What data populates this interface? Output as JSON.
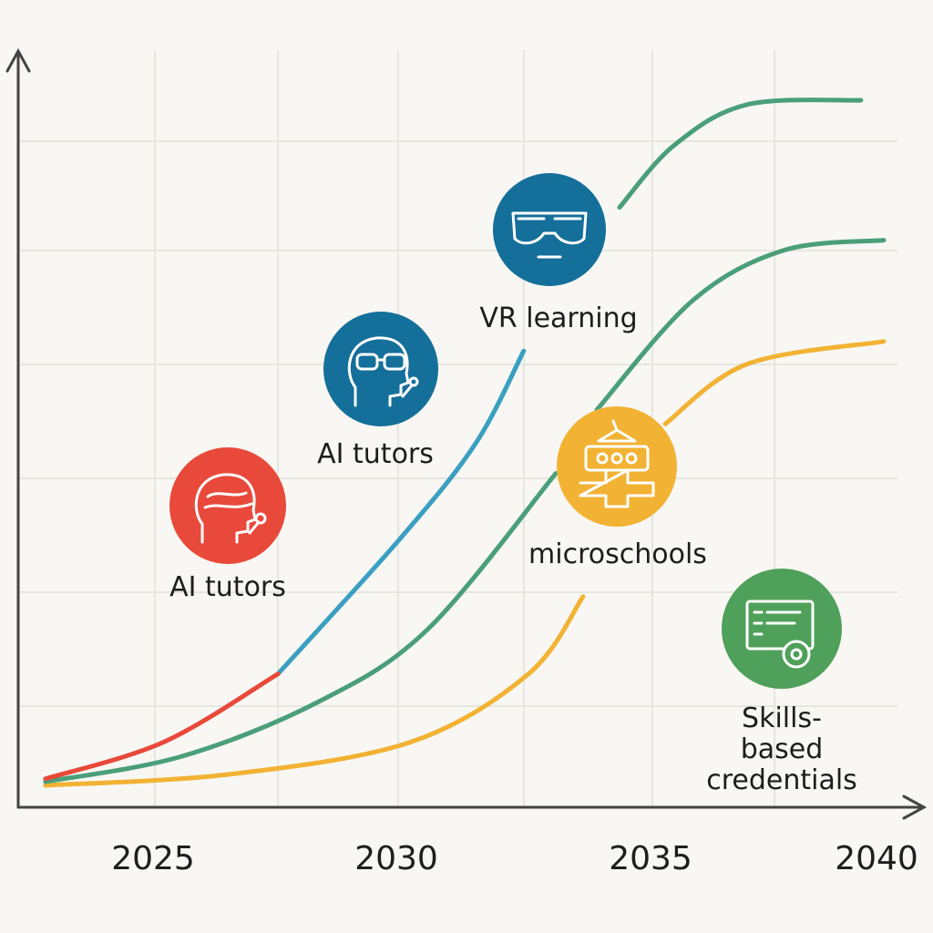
{
  "chart_data": {
    "type": "line",
    "title": "",
    "xlabel": "",
    "ylabel": "",
    "xlim": [
      2022.5,
      2041
    ],
    "ylim": [
      0,
      100
    ],
    "grid": true,
    "x_ticks": [
      "2025",
      "2030",
      "2035",
      "2040"
    ],
    "series": [
      {
        "name": "AI tutors (red)",
        "color": "#e8493a",
        "points": [
          [
            2022.75,
            3.9
          ],
          [
            2025.2,
            9
          ],
          [
            2027.53,
            18.3
          ]
        ]
      },
      {
        "name": "AI tutors (blue)",
        "color": "#3a9fc0",
        "points": [
          [
            2027.53,
            18.3
          ],
          [
            2030.06,
            37
          ],
          [
            2031.6,
            50
          ],
          [
            2032.58,
            62.6
          ]
        ]
      },
      {
        "name": "microschools (green)",
        "color": "#4a9f7a",
        "points": [
          [
            2022.75,
            3.5
          ],
          [
            2025.56,
            7
          ],
          [
            2028.37,
            14.5
          ],
          [
            2030.62,
            24.5
          ],
          [
            2033.24,
            45.8
          ]
        ]
      },
      {
        "name": "microschools (green upper)",
        "color": "#4a9f7a",
        "points": [
          [
            2034.08,
            54.5
          ],
          [
            2036.05,
            69.5
          ],
          [
            2037.92,
            76.4
          ],
          [
            2039.98,
            77.8
          ]
        ]
      },
      {
        "name": "VR learning (green top)",
        "color": "#4a9f7a",
        "points": [
          [
            2034.55,
            82.3
          ],
          [
            2035.67,
            90.8
          ],
          [
            2037.17,
            96.4
          ],
          [
            2039.51,
            97
          ]
        ]
      },
      {
        "name": "Skills-based credentials (yellow)",
        "color": "#f2b233",
        "points": [
          [
            2022.75,
            3
          ],
          [
            2026.5,
            4.5
          ],
          [
            2030.24,
            8.9
          ],
          [
            2032.68,
            18.3
          ],
          [
            2033.8,
            28.9
          ]
        ]
      },
      {
        "name": "Skills-based credentials (yellow upper)",
        "color": "#f2b233",
        "points": [
          [
            2035.49,
            52.6
          ],
          [
            2037.17,
            60.8
          ],
          [
            2039.98,
            63.9
          ]
        ]
      }
    ],
    "annotations": [
      {
        "text": "AI tutors",
        "icon": "head-with-headset-icon",
        "color": "#e8493a"
      },
      {
        "text": "AI tutors",
        "icon": "head-with-glasses-icon",
        "color": "#146f9a"
      },
      {
        "text": "VR learning",
        "icon": "vr-goggles-icon",
        "color": "#146f9a"
      },
      {
        "text": "microschools",
        "icon": "robot-building-icon",
        "color": "#f2b233"
      },
      {
        "text": "Skills-based\ncredentials",
        "icon": "certificate-icon",
        "color": "#4fa05a"
      }
    ]
  }
}
